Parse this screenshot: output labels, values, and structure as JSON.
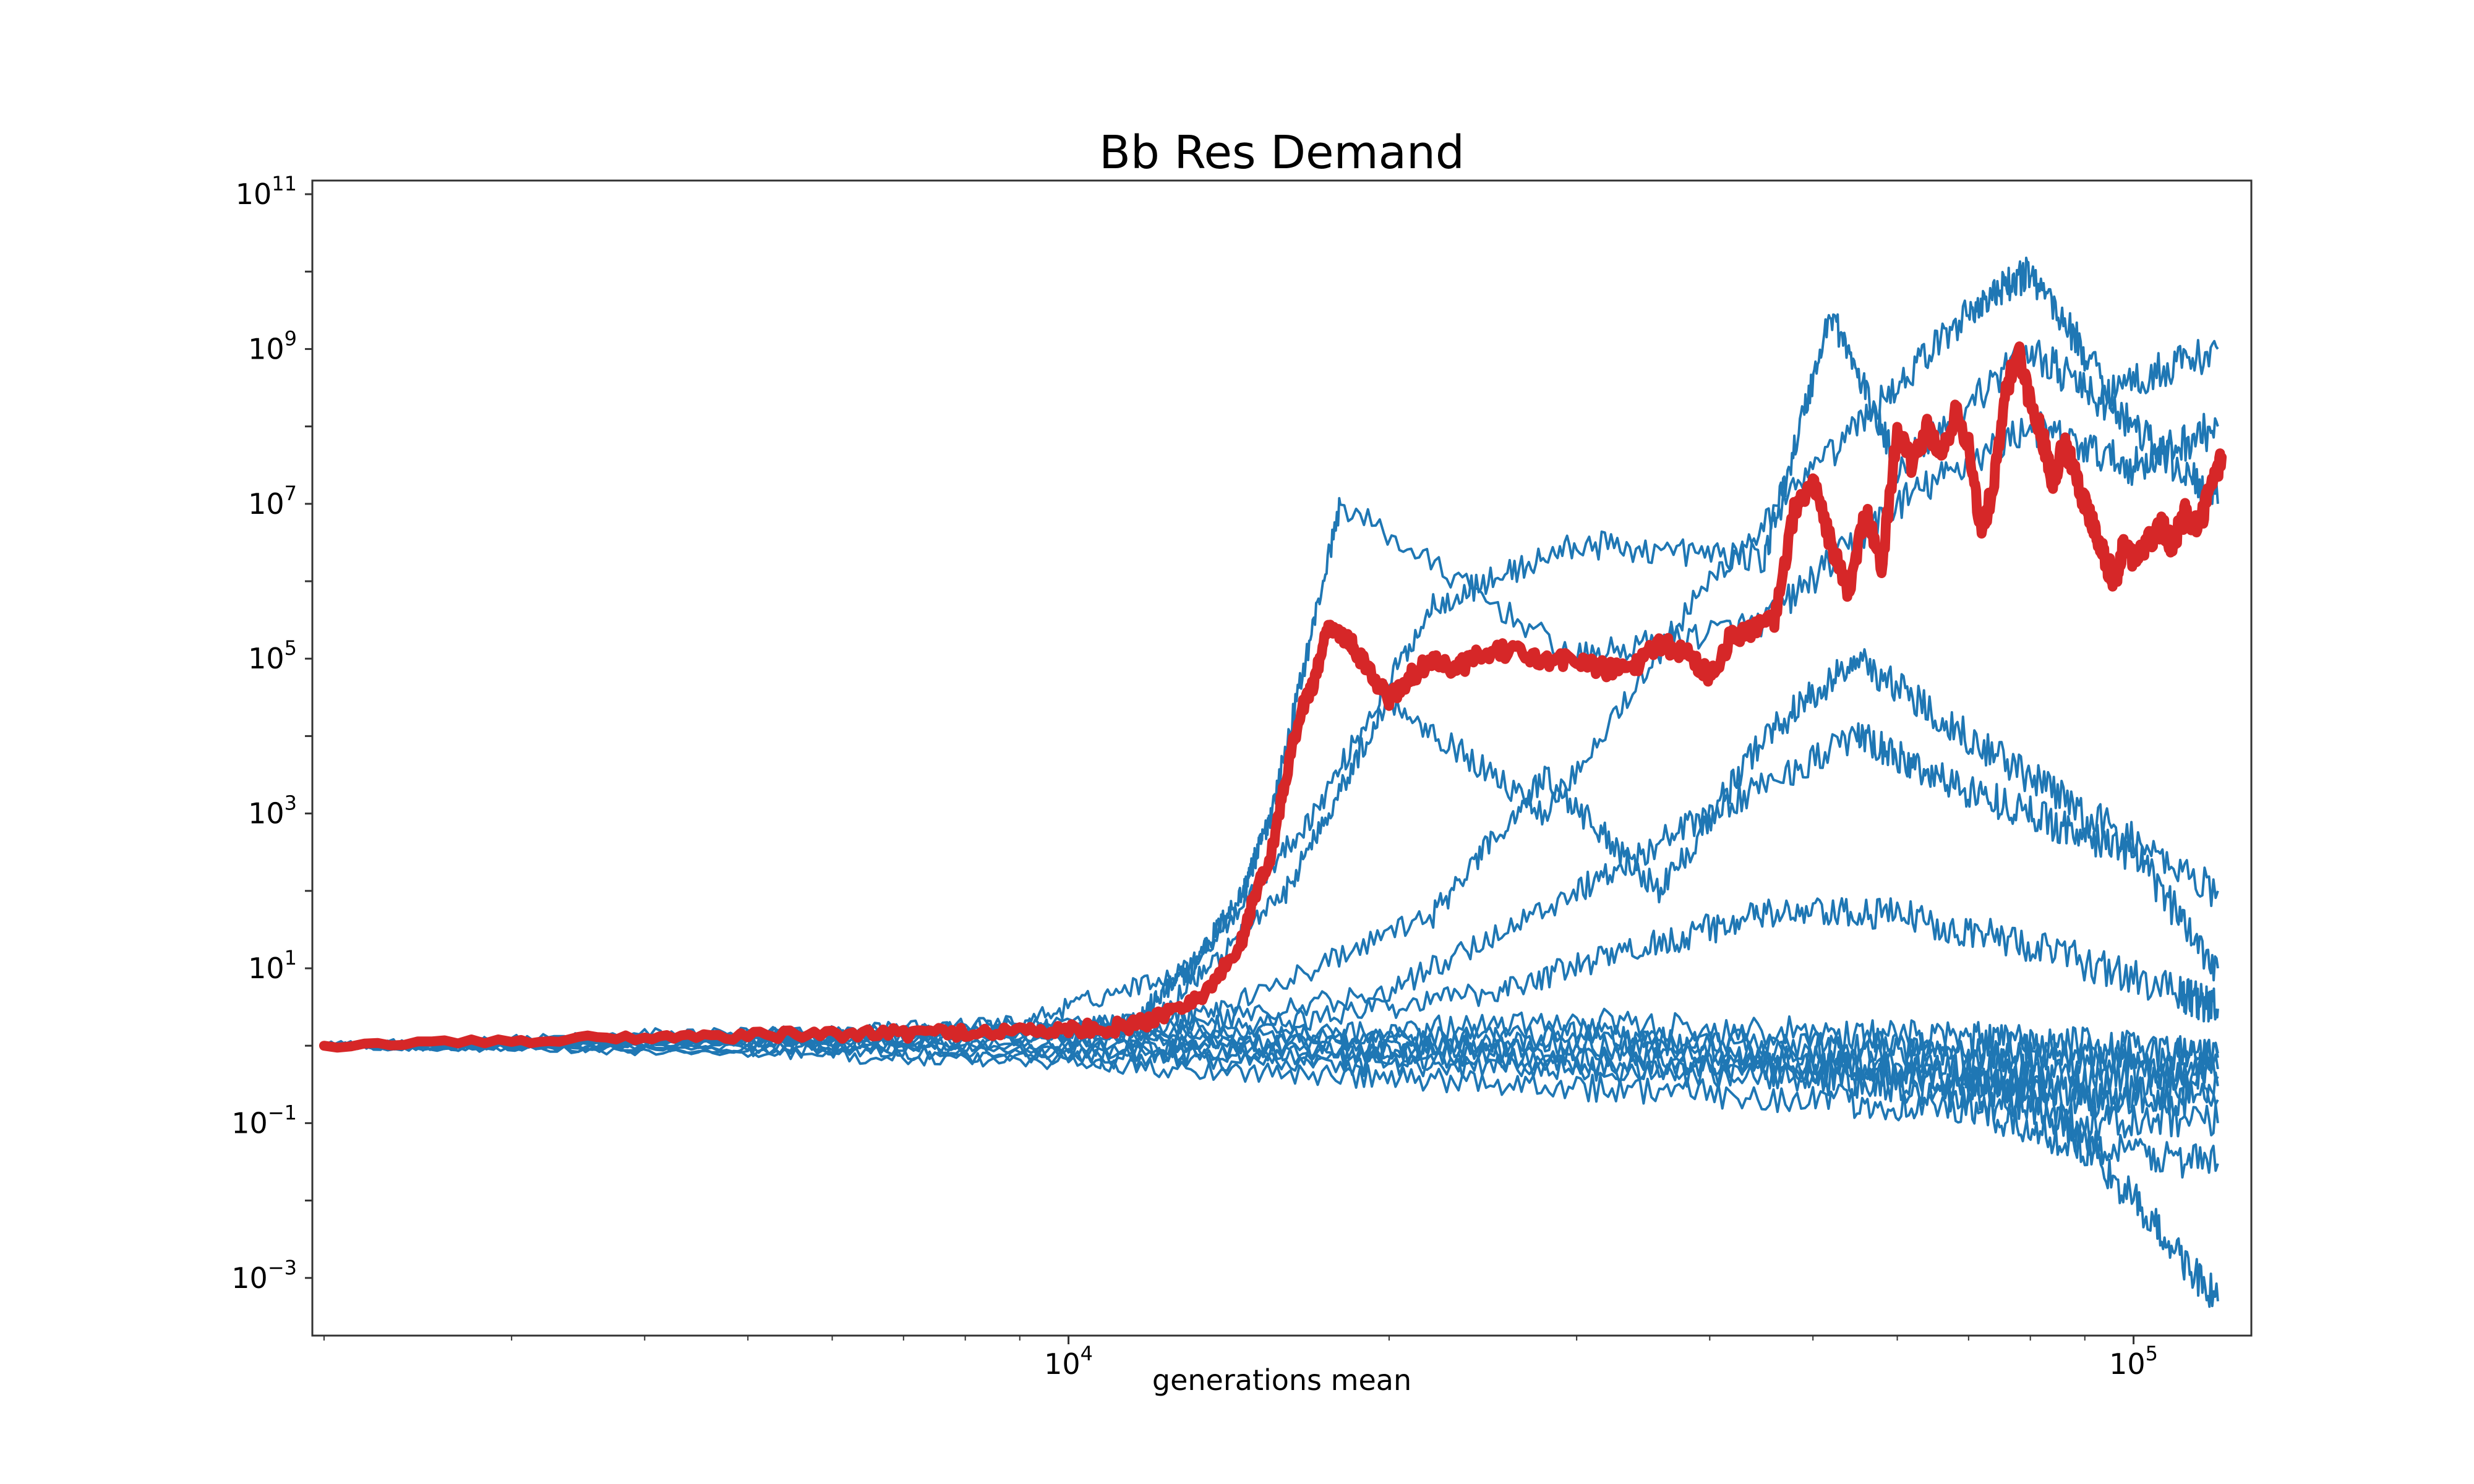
{
  "chart_data": {
    "type": "line",
    "title": "Bb Res Demand",
    "xlabel": "generations mean",
    "ylabel": "",
    "x_scale": "log",
    "y_scale": "log",
    "xlim": [
      1950,
      129000
    ],
    "ylim": [
      0.00018,
      150000000000
    ],
    "grid": false,
    "legend": "none",
    "x_ticks": [
      {
        "value": 10000,
        "base": "10",
        "exp": "4"
      },
      {
        "value": 100000,
        "base": "10",
        "exp": "5"
      }
    ],
    "y_ticks": [
      {
        "value": 0.001,
        "base": "10",
        "exp": "−3"
      },
      {
        "value": 0.1,
        "base": "10",
        "exp": "−1"
      },
      {
        "value": 10,
        "base": "10",
        "exp": "1"
      },
      {
        "value": 1000,
        "base": "10",
        "exp": "3"
      },
      {
        "value": 100000,
        "base": "10",
        "exp": "5"
      },
      {
        "value": 10000000,
        "base": "10",
        "exp": "7"
      },
      {
        "value": 1000000000,
        "base": "10",
        "exp": "9"
      },
      {
        "value": 100000000000,
        "base": "10",
        "exp": "11"
      }
    ],
    "colors": {
      "thin_series": "#1f77b4",
      "highlight_series": "#d62728"
    },
    "thin_series": [
      {
        "x": [
          2000,
          4000,
          8000,
          11500,
          13000,
          14600,
          15500,
          18000,
          30000,
          45000,
          60000,
          80000,
          100000,
          120000
        ],
        "y": [
          1,
          1.4,
          1.6,
          2,
          10,
          100,
          1000,
          10000000,
          100000,
          300000,
          10000000,
          100000000,
          30000000,
          100000000
        ]
      },
      {
        "x": [
          2000,
          5000,
          9000,
          13000,
          17000,
          22000,
          30000,
          45000,
          52000,
          60000,
          80000,
          100000,
          120000
        ],
        "y": [
          1,
          1.3,
          2,
          10,
          1000,
          500000,
          3000000,
          2000000,
          3000000000,
          30000000,
          1000000000,
          100000000,
          10000000
        ]
      },
      {
        "x": [
          2000,
          6000,
          12000,
          16000,
          20000,
          28000,
          40000,
          55000,
          70000,
          80000,
          95000,
          120000
        ],
        "y": [
          1,
          1.5,
          2,
          100,
          30000,
          1000,
          1000000,
          100000000,
          3000000000,
          10000000000,
          300000000,
          1000000000
        ]
      },
      {
        "x": [
          2000,
          5000,
          10000,
          14000,
          22000,
          28000,
          36000,
          45000,
          55000,
          70000,
          90000,
          120000
        ],
        "y": [
          1,
          1.2,
          1.6,
          3,
          50,
          3000,
          100,
          10000,
          100000,
          10000,
          1000,
          100
        ]
      },
      {
        "x": [
          2000,
          6000,
          12000,
          20000,
          30000,
          40000,
          55000,
          65000,
          80000,
          100000,
          120000
        ],
        "y": [
          1,
          1.3,
          1.6,
          5,
          100,
          1000,
          10000,
          3000,
          1000,
          300,
          10
        ]
      },
      {
        "x": [
          2000,
          5000,
          10000,
          16000,
          25000,
          35000,
          45000,
          60000,
          80000,
          110000,
          120000
        ],
        "y": [
          1,
          1.2,
          1.5,
          2,
          5,
          20,
          50,
          50,
          20,
          5,
          3
        ]
      },
      {
        "x": [
          2000,
          6000,
          12000,
          20000,
          30000,
          45000,
          60000,
          80000,
          100000,
          120000
        ],
        "y": [
          1,
          1.2,
          1,
          0.8,
          1.5,
          0.7,
          0.5,
          0.3,
          0.01,
          0.0005
        ]
      },
      {
        "x": [
          2000,
          5000,
          10000,
          18000,
          30000,
          50000,
          70000,
          90000,
          120000
        ],
        "y": [
          1,
          0.8,
          0.6,
          0.4,
          0.3,
          0.2,
          0.15,
          0.05,
          0.03
        ]
      },
      {
        "x": [
          2000,
          5000,
          10000,
          18000,
          30000,
          50000,
          70000,
          90000,
          120000
        ],
        "y": [
          1,
          0.9,
          0.7,
          0.6,
          0.5,
          0.4,
          0.3,
          0.2,
          0.3
        ]
      },
      {
        "x": [
          2000,
          5000,
          10000,
          18000,
          30000,
          50000,
          70000,
          90000,
          120000
        ],
        "y": [
          1,
          1.1,
          1.3,
          1.0,
          0.8,
          0.6,
          0.5,
          0.4,
          0.5
        ]
      },
      {
        "x": [
          2000,
          5000,
          10000,
          18000,
          30000,
          50000,
          70000,
          90000,
          120000
        ],
        "y": [
          1,
          1.2,
          1.5,
          1.4,
          1.2,
          1.0,
          0.9,
          0.8,
          0.7
        ]
      },
      {
        "x": [
          2000,
          5000,
          10000,
          18000,
          30000,
          50000,
          70000,
          90000,
          120000
        ],
        "y": [
          1,
          0.9,
          0.8,
          0.9,
          0.7,
          0.5,
          0.35,
          0.25,
          0.2
        ]
      },
      {
        "x": [
          2000,
          5000,
          10000,
          18000,
          30000,
          50000,
          70000,
          90000,
          120000
        ],
        "y": [
          1,
          1.0,
          1.1,
          1.5,
          2.0,
          1.5,
          1.2,
          1.0,
          0.8
        ]
      },
      {
        "x": [
          2000,
          5000,
          10000,
          18000,
          30000,
          50000,
          70000,
          90000,
          120000
        ],
        "y": [
          1,
          1.1,
          0.9,
          0.7,
          0.6,
          0.4,
          0.2,
          0.1,
          0.1
        ]
      },
      {
        "x": [
          2000,
          5000,
          10000,
          18000,
          30000,
          50000,
          70000,
          90000,
          120000
        ],
        "y": [
          1,
          0.95,
          0.9,
          1.2,
          1.0,
          0.9,
          0.7,
          0.6,
          0.4
        ]
      }
    ],
    "highlight_series": {
      "x": [
        2000,
        3000,
        4000,
        5000,
        6000,
        7000,
        8000,
        9000,
        10000,
        11000,
        11800,
        12500,
        13500,
        14500,
        15000,
        15500,
        16000,
        16500,
        17000,
        17500,
        18000,
        18500,
        19000,
        20000,
        21000,
        22000,
        23000,
        24000,
        26000,
        28000,
        30000,
        32000,
        34000,
        36000,
        38000,
        40000,
        42000,
        44000,
        46000,
        48000,
        50000,
        52000,
        54000,
        56000,
        58000,
        60000,
        62000,
        64000,
        66000,
        68000,
        70000,
        72000,
        74000,
        76000,
        78000,
        80000,
        82000,
        84000,
        86000,
        88000,
        90000,
        92000,
        94000,
        96000,
        98000,
        100000,
        103000,
        106000,
        109000,
        112000,
        115000,
        118000,
        121000
      ],
      "y": [
        1,
        1.15,
        1.3,
        1.35,
        1.4,
        1.45,
        1.5,
        1.55,
        1.6,
        1.7,
        2.0,
        3.0,
        5.0,
        20,
        100,
        300,
        3000,
        20000,
        50000,
        250000,
        220000,
        150000,
        80000,
        30000,
        60000,
        100000,
        70000,
        100000,
        130000,
        90000,
        100000,
        70000,
        80000,
        150000,
        120000,
        60000,
        200000,
        250000,
        300000,
        8000000,
        20000000,
        3000000,
        700000,
        8000000,
        1500000,
        90000000,
        30000000,
        100000000,
        40000000,
        150000000,
        60000000,
        4000000,
        20000000,
        300000000,
        1000000000,
        200000000,
        80000000,
        20000000,
        60000000,
        30000000,
        10000000,
        5000000,
        2000000,
        1000000,
        3000000,
        2000000,
        3000000,
        5000000,
        3000000,
        8000000,
        5000000,
        15000000,
        40000000
      ]
    }
  }
}
